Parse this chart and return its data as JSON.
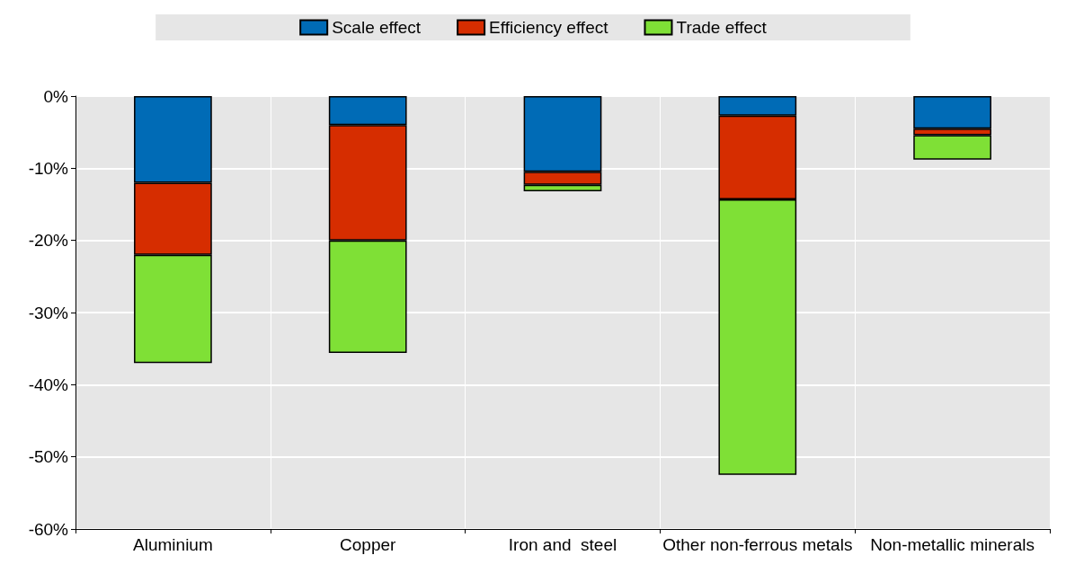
{
  "chart_data": {
    "type": "bar",
    "stacked": true,
    "categories": [
      "Aluminium",
      "Copper",
      "Iron and  steel",
      "Other non-ferrous metals",
      "Non-metallic minerals"
    ],
    "series": [
      {
        "name": "Scale effect",
        "color": "#006bb6",
        "values": [
          -12,
          -4,
          -10.5,
          -2.7,
          -4.5
        ]
      },
      {
        "name": "Efficiency effect",
        "color": "#d62d00",
        "values": [
          -10,
          -16,
          -1.8,
          -11.6,
          -0.9
        ]
      },
      {
        "name": "Trade effect",
        "color": "#7fe036",
        "values": [
          -15,
          -15.6,
          -0.9,
          -38.2,
          -3.4
        ]
      }
    ],
    "ylim": [
      -60,
      0
    ],
    "yticks": [
      {
        "value": -60,
        "label": "-60%"
      },
      {
        "value": -50,
        "label": "-50%"
      },
      {
        "value": -40,
        "label": "-40%"
      },
      {
        "value": -30,
        "label": "-30%"
      },
      {
        "value": -20,
        "label": "-20%"
      },
      {
        "value": -10,
        "label": "-10%"
      },
      {
        "value": 0,
        "label": "0%"
      }
    ],
    "grid": true,
    "legend": "top"
  }
}
